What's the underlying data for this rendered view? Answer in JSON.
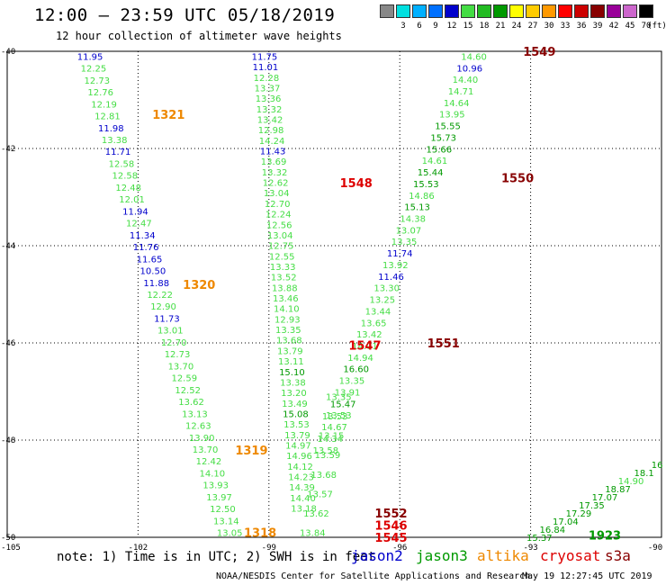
{
  "header": {
    "title": "12:00 – 23:59 UTC 05/18/2019",
    "subtitle": "12 hour collection of altimeter wave heights"
  },
  "colorbar": {
    "unit": "(ft)",
    "bins": [
      {
        "label": "",
        "color": "#888888"
      },
      {
        "label": "3",
        "color": "#00e0e0"
      },
      {
        "label": "6",
        "color": "#00b0ff"
      },
      {
        "label": "9",
        "color": "#0070ff"
      },
      {
        "label": "12",
        "color": "#0000cc"
      },
      {
        "label": "15",
        "color": "#44dd44"
      },
      {
        "label": "18",
        "color": "#22bb22"
      },
      {
        "label": "21",
        "color": "#009900"
      },
      {
        "label": "24",
        "color": "#ffff00"
      },
      {
        "label": "27",
        "color": "#ffcc00"
      },
      {
        "label": "30",
        "color": "#ff9900"
      },
      {
        "label": "33",
        "color": "#ff0000"
      },
      {
        "label": "36",
        "color": "#cc0000"
      },
      {
        "label": "39",
        "color": "#880000"
      },
      {
        "label": "42",
        "color": "#990099"
      },
      {
        "label": "45",
        "color": "#cc66cc"
      },
      {
        "label": "70",
        "color": "#000000"
      }
    ]
  },
  "map": {
    "lon_ticks": [
      "-105",
      "-102",
      "-99",
      "-96",
      "-93",
      "-90"
    ],
    "lat_ticks": [
      "-40",
      "-42",
      "-44",
      "-46",
      "-48",
      "-50"
    ]
  },
  "colors": {
    "blue": "#0000cc",
    "lgreen": "#44dd44",
    "dgreen": "#009900",
    "orange": "#ee8800",
    "red": "#dd0000",
    "maroon": "#880000"
  },
  "chart_data": {
    "type": "map",
    "extent": {
      "lon": [
        -105,
        -90
      ],
      "lat": [
        -50,
        -40
      ]
    },
    "tracks": [
      {
        "id": "A",
        "lon0": -103.1,
        "lat0": -40.1,
        "lon1": -99.9,
        "lat1": -49.9,
        "values": [
          "11.95",
          "12.25",
          "12.73",
          "12.76",
          "12.19",
          "12.81",
          "11.98",
          "13.38",
          "11.71",
          "12.58",
          "12.58",
          "12.48",
          "12.01",
          "11.94",
          "12.47",
          "11.34",
          "11.76",
          "11.65",
          "10.50",
          "11.88",
          "12.22",
          "12.90",
          "11.73",
          "13.01",
          "12.70",
          "12.73",
          "13.70",
          "12.59",
          "12.52",
          "13.62",
          "13.13",
          "12.63",
          "13.90",
          "13.70",
          "12.42",
          "14.10",
          "13.93",
          "13.97",
          "12.50",
          "13.14",
          "13.05"
        ],
        "color_keys": [
          "blue",
          "lgreen",
          "lgreen",
          "lgreen",
          "lgreen",
          "lgreen",
          "blue",
          "lgreen",
          "blue",
          "lgreen",
          "lgreen",
          "lgreen",
          "lgreen",
          "blue",
          "lgreen",
          "blue",
          "blue",
          "blue",
          "blue",
          "blue",
          "lgreen",
          "lgreen",
          "blue",
          "lgreen",
          "lgreen",
          "lgreen",
          "lgreen",
          "lgreen",
          "lgreen",
          "lgreen",
          "lgreen",
          "lgreen",
          "lgreen",
          "lgreen",
          "lgreen",
          "lgreen",
          "lgreen",
          "lgreen",
          "lgreen",
          "lgreen",
          "lgreen"
        ]
      },
      {
        "id": "B",
        "lon0": -99.1,
        "lat0": -40.1,
        "lon1": -98.2,
        "lat1": -49.4,
        "values": [
          "11.75",
          "11.01",
          "12.28",
          "13.37",
          "13.36",
          "13.32",
          "13.42",
          "12.98",
          "14.24",
          "11.43",
          "13.69",
          "13.32",
          "12.62",
          "13.04",
          "12.70",
          "12.24",
          "12.56",
          "13.04",
          "12.75",
          "12.55",
          "13.33",
          "13.52",
          "13.88",
          "13.46",
          "14.10",
          "12.93",
          "13.35",
          "13.68",
          "13.79",
          "13.11",
          "15.10",
          "13.38",
          "13.20",
          "13.49",
          "15.08",
          "13.53",
          "13.79",
          "14.97",
          "14.96",
          "14.12",
          "14.23",
          "14.39",
          "14.40",
          "13.18"
        ],
        "color_keys": [
          "blue",
          "blue",
          "lgreen",
          "lgreen",
          "lgreen",
          "lgreen",
          "lgreen",
          "lgreen",
          "lgreen",
          "blue",
          "lgreen",
          "lgreen",
          "lgreen",
          "lgreen",
          "lgreen",
          "lgreen",
          "lgreen",
          "lgreen",
          "lgreen",
          "lgreen",
          "lgreen",
          "lgreen",
          "lgreen",
          "lgreen",
          "lgreen",
          "lgreen",
          "lgreen",
          "lgreen",
          "lgreen",
          "lgreen",
          "dgreen",
          "lgreen",
          "lgreen",
          "lgreen",
          "dgreen",
          "lgreen",
          "lgreen",
          "lgreen",
          "lgreen",
          "lgreen",
          "lgreen",
          "lgreen",
          "lgreen",
          "lgreen"
        ]
      },
      {
        "id": "C",
        "lon0": -97.4,
        "lat0": -47.1,
        "lon1": -98.0,
        "lat1": -49.9,
        "values": [
          "13.35",
          "13.53",
          "13.15",
          "13.59",
          "13.68",
          "13.57",
          "13.62",
          "13.84"
        ],
        "color_keys": [
          "lgreen",
          "lgreen",
          "lgreen",
          "lgreen",
          "lgreen",
          "lgreen",
          "lgreen",
          "lgreen"
        ]
      },
      {
        "id": "D",
        "lon0": -94.3,
        "lat0": -40.1,
        "lon1": -97.7,
        "lat1": -48.2,
        "values": [
          "14.60",
          "10.96",
          "14.40",
          "14.71",
          "14.64",
          "13.95",
          "15.55",
          "15.73",
          "15.66",
          "14.61",
          "15.44",
          "15.53",
          "14.86",
          "15.13",
          "14.38",
          "13.07",
          "13.35",
          "11.74",
          "13.92",
          "11.46",
          "13.30",
          "13.25",
          "13.44",
          "13.65",
          "13.42",
          "14.01",
          "14.94",
          "16.60",
          "13.35",
          "13.91",
          "15.47",
          "13.53",
          "14.67",
          "14.34",
          "13.58"
        ],
        "color_keys": [
          "lgreen",
          "blue",
          "lgreen",
          "lgreen",
          "lgreen",
          "lgreen",
          "dgreen",
          "dgreen",
          "dgreen",
          "lgreen",
          "dgreen",
          "dgreen",
          "lgreen",
          "dgreen",
          "lgreen",
          "lgreen",
          "lgreen",
          "blue",
          "lgreen",
          "blue",
          "lgreen",
          "lgreen",
          "lgreen",
          "lgreen",
          "lgreen",
          "lgreen",
          "lgreen",
          "dgreen",
          "lgreen",
          "lgreen",
          "dgreen",
          "lgreen",
          "lgreen",
          "lgreen",
          "lgreen"
        ]
      },
      {
        "id": "E",
        "lon0": -90.1,
        "lat0": -48.5,
        "lon1": -92.8,
        "lat1": -50.0,
        "values": [
          "16",
          "18.1",
          "14.90",
          "18.87",
          "17.07",
          "17.35",
          "17.29",
          "17.04",
          "16.84",
          "15.37"
        ],
        "color_keys": [
          "dgreen",
          "dgreen",
          "lgreen",
          "dgreen",
          "dgreen",
          "dgreen",
          "dgreen",
          "dgreen",
          "dgreen",
          "dgreen"
        ]
      }
    ],
    "time_labels": [
      {
        "text": "1321",
        "lon": -101.3,
        "lat": -41.3,
        "color_key": "orange"
      },
      {
        "text": "1320",
        "lon": -100.6,
        "lat": -44.8,
        "color_key": "orange"
      },
      {
        "text": "1319",
        "lon": -99.4,
        "lat": -48.2,
        "color_key": "orange"
      },
      {
        "text": "1318",
        "lon": -99.2,
        "lat": -49.9,
        "color_key": "orange"
      },
      {
        "text": "1548",
        "lon": -97.0,
        "lat": -42.7,
        "color_key": "red"
      },
      {
        "text": "1547",
        "lon": -96.8,
        "lat": -46.05,
        "color_key": "red"
      },
      {
        "text": "1552",
        "lon": -96.2,
        "lat": -49.5,
        "color_key": "maroon"
      },
      {
        "text": "1546",
        "lon": -96.2,
        "lat": -49.75,
        "color_key": "red"
      },
      {
        "text": "1545",
        "lon": -96.2,
        "lat": -50.0,
        "color_key": "red"
      },
      {
        "text": "1549",
        "lon": -92.8,
        "lat": -40.0,
        "color_key": "maroon"
      },
      {
        "text": "1550",
        "lon": -93.3,
        "lat": -42.6,
        "color_key": "maroon"
      },
      {
        "text": "1551",
        "lon": -95.0,
        "lat": -46.0,
        "color_key": "maroon"
      },
      {
        "text": "1923",
        "lon": -91.3,
        "lat": -49.95,
        "color_key": "dgreen"
      }
    ]
  },
  "footer": {
    "note": "note: 1) Time is in UTC; 2) SWH is in feet",
    "missions": [
      {
        "name": "jason2",
        "color_key": "blue"
      },
      {
        "name": "jason3",
        "color_key": "dgreen"
      },
      {
        "name": "altika",
        "color_key": "orange"
      },
      {
        "name": "cryosat",
        "color_key": "red"
      },
      {
        "name": "s3a",
        "color_key": "maroon"
      }
    ],
    "credit": "NOAA/NESDIS Center for Satellite Applications and Research",
    "timestamp": "May 19 12:27:45 UTC 2019"
  }
}
